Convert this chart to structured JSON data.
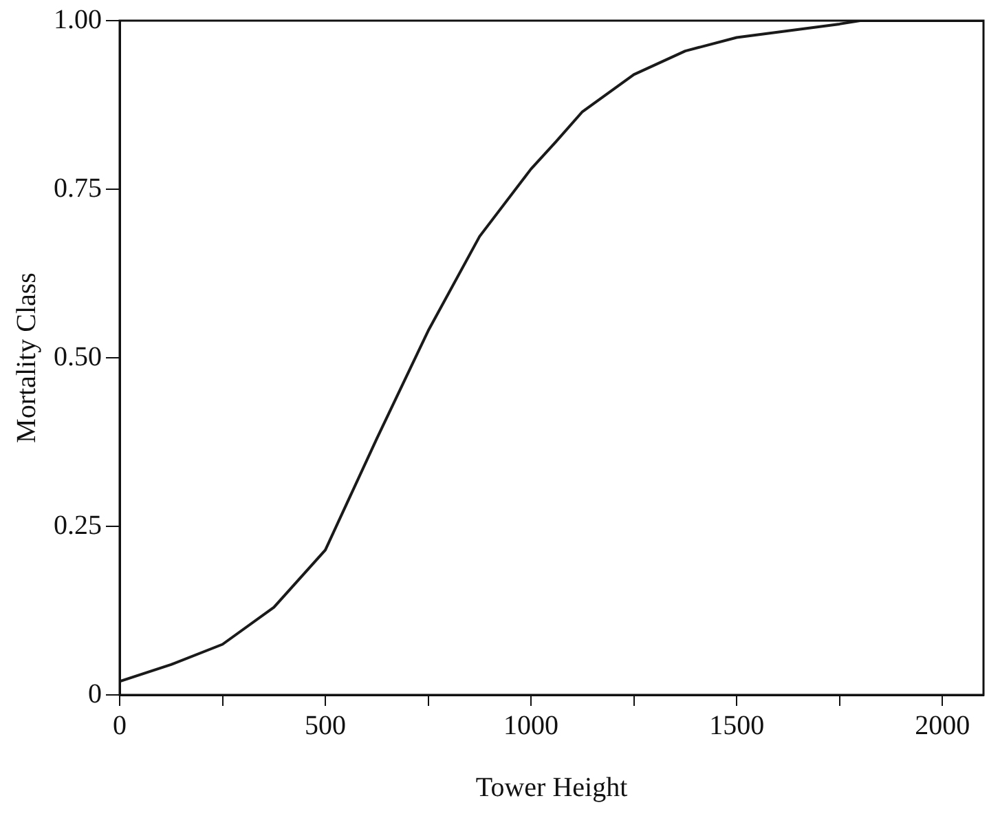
{
  "chart_data": {
    "type": "line",
    "xlabel": "Tower Height",
    "ylabel": "Mortality Class",
    "x": [
      0,
      125,
      250,
      375,
      500,
      625,
      750,
      875,
      1000,
      1060,
      1125,
      1250,
      1375,
      1500,
      1625,
      1750,
      1800,
      1900,
      2100
    ],
    "series": [
      {
        "color": "#1a1a1a",
        "values": [
          0.02,
          0.045,
          0.075,
          0.13,
          0.215,
          0.38,
          0.54,
          0.68,
          0.78,
          0.82,
          0.865,
          0.92,
          0.955,
          0.975,
          0.985,
          0.995,
          1.0,
          1.0,
          1.0
        ]
      }
    ],
    "xlim": [
      0,
      2100
    ],
    "xticks": [
      0,
      {
        "value": 250,
        "label": null
      },
      500,
      {
        "value": 750,
        "label": null
      },
      1000,
      {
        "value": 1250,
        "label": null
      },
      1500,
      {
        "value": 1750,
        "label": null
      },
      2000
    ],
    "ylim": [
      0,
      1
    ],
    "yticks": [
      {
        "value": 0,
        "label": "0"
      },
      {
        "value": 0.25,
        "label": "0.25"
      },
      {
        "value": 0.5,
        "label": "0.50"
      },
      {
        "value": 0.75,
        "label": "0.75"
      },
      {
        "value": 1,
        "label": "1.00"
      }
    ],
    "grid": false,
    "legend": false,
    "marker": "none",
    "line_style": "solid"
  }
}
